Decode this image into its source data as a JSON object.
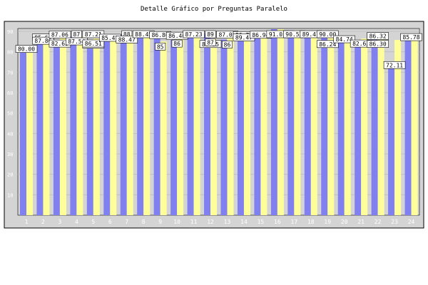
{
  "chart_data": {
    "type": "bar",
    "title": "Detalle Gráfico por Preguntas Paralelo",
    "xlabel": "",
    "ylabel": "",
    "ylim": [
      0,
      90
    ],
    "yticks": [
      "10",
      "20",
      "30",
      "40",
      "50",
      "60",
      "70",
      "80",
      "90"
    ],
    "categories": [
      "1",
      "2",
      "3",
      "4",
      "5",
      "6",
      "7",
      "8",
      "9",
      "10",
      "11",
      "12",
      "13",
      "14",
      "15",
      "16",
      "17",
      "18",
      "19",
      "20",
      "21",
      "22",
      "23",
      "24"
    ],
    "series": [
      {
        "values": [
          80.0,
          85.61,
          82.63,
          87.54,
          82.11,
          87.21,
          88.47,
          88.45,
          86.8,
          85.8,
          87.23,
          89.0,
          86.0,
          89.47,
          86.94,
          91.05,
          90.53,
          89.47,
          90.0,
          86.24,
          82.63,
          86.32,
          72.11,
          85.78
        ]
      },
      {
        "values": [
          80.0,
          87.86,
          87.06,
          87.54,
          86.51,
          85.47,
          88.47,
          88.45,
          85.0,
          86.46,
          87.23,
          86.25,
          87.05,
          86.78,
          89.47,
          91.05,
          90.53,
          89.47,
          90.0,
          84.74,
          86.5,
          86.3,
          85.78,
          85.78
        ]
      }
    ],
    "colors": {
      "series1": "#8080f0",
      "series2": "#ffff99",
      "background": "#d4d4d4"
    },
    "data_labels": [
      {
        "text": "80.00",
        "category": 1,
        "value": 80.0
      },
      {
        "text": "85.61",
        "category": 2,
        "value": 85.61
      },
      {
        "text": "87.86",
        "category": 2,
        "value": 87.86
      },
      {
        "text": "82.63",
        "category": 3,
        "value": 82.63
      },
      {
        "text": "87.06",
        "category": 3,
        "value": 87.06
      },
      {
        "text": "87",
        "category": 4,
        "value": 87.54
      },
      {
        "text": "87.54",
        "category": 4,
        "value": 87.54
      },
      {
        "text": "82.11",
        "category": 5,
        "value": 82.11
      },
      {
        "text": "87.21",
        "category": 5,
        "value": 87.21
      },
      {
        "text": "86.51",
        "category": 5,
        "value": 86.51
      },
      {
        "text": "85.47",
        "category": 6,
        "value": 85.47
      },
      {
        "text": "88",
        "category": 7,
        "value": 88.47
      },
      {
        "text": "88.47",
        "category": 7,
        "value": 88.47
      },
      {
        "text": "88.45",
        "category": 8,
        "value": 88.45
      },
      {
        "text": "86.80",
        "category": 9,
        "value": 86.8
      },
      {
        "text": "85",
        "category": 9,
        "value": 85.0
      },
      {
        "text": "86.46",
        "category": 10,
        "value": 86.46
      },
      {
        "text": "86",
        "category": 10,
        "value": 86.46
      },
      {
        "text": "87.23",
        "category": 11,
        "value": 87.23
      },
      {
        "text": "89",
        "category": 12,
        "value": 89.0
      },
      {
        "text": "86.25",
        "category": 12,
        "value": 86.25
      },
      {
        "text": "87",
        "category": 12,
        "value": 87.05
      },
      {
        "text": "87.05",
        "category": 13,
        "value": 87.05
      },
      {
        "text": "86",
        "category": 13,
        "value": 86.0
      },
      {
        "text": "86.78",
        "category": 14,
        "value": 86.78
      },
      {
        "text": "89.47",
        "category": 14,
        "value": 89.47
      },
      {
        "text": "86.94",
        "category": 15,
        "value": 86.94
      },
      {
        "text": "91.05",
        "category": 16,
        "value": 91.05
      },
      {
        "text": "90.53",
        "category": 17,
        "value": 90.53
      },
      {
        "text": "89.47",
        "category": 18,
        "value": 89.47
      },
      {
        "text": "90.00",
        "category": 19,
        "value": 90.0
      },
      {
        "text": "86.24",
        "category": 19,
        "value": 86.24
      },
      {
        "text": "84.74",
        "category": 20,
        "value": 84.74
      },
      {
        "text": "82.63",
        "category": 21,
        "value": 82.63
      },
      {
        "text": "86.32",
        "category": 22,
        "value": 86.32
      },
      {
        "text": "86.30",
        "category": 22,
        "value": 86.3
      },
      {
        "text": "72.11",
        "category": 23,
        "value": 72.11
      },
      {
        "text": "85.78",
        "category": 24,
        "value": 85.78
      }
    ],
    "grid": true,
    "legend": "none"
  }
}
